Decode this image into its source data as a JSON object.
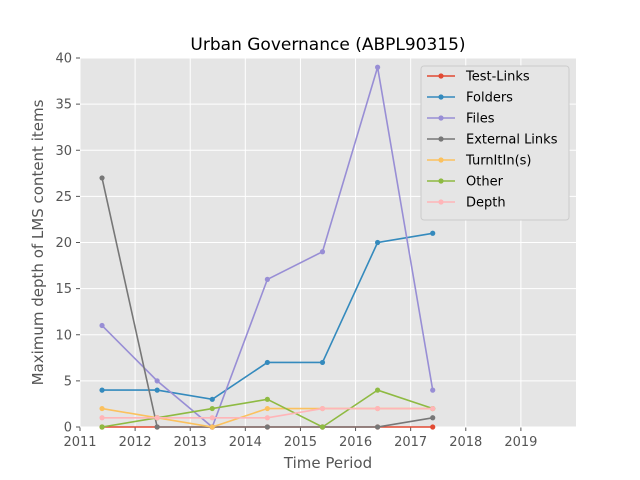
{
  "chart_data": {
    "type": "line",
    "title": "Urban Governance (ABPL90315)",
    "xlabel": "Time Period",
    "ylabel": "Maximum depth of LMS content items",
    "xlim": [
      2011,
      2020
    ],
    "ylim": [
      0,
      40
    ],
    "x_ticks": [
      "2011",
      "2012",
      "2013",
      "2014",
      "2015",
      "2016",
      "2017",
      "2018",
      "2019"
    ],
    "y_ticks": [
      "0",
      "5",
      "10",
      "15",
      "20",
      "25",
      "30",
      "35",
      "40"
    ],
    "x": [
      2011.4,
      2012.4,
      2013.4,
      2014.4,
      2015.4,
      2016.4,
      2017.4
    ],
    "grid": true,
    "legend_position": "top-right",
    "background": "#e5e5e5",
    "series": [
      {
        "name": "Test-Links",
        "color": "#e24a33",
        "values": [
          0,
          0,
          0,
          0,
          0,
          0,
          0
        ]
      },
      {
        "name": "Folders",
        "color": "#348abd",
        "values": [
          4,
          4,
          3,
          7,
          7,
          20,
          21
        ]
      },
      {
        "name": "Files",
        "color": "#988ed5",
        "values": [
          11,
          5,
          0,
          16,
          19,
          39,
          4
        ]
      },
      {
        "name": "External Links",
        "color": "#777777",
        "values": [
          27,
          0,
          0,
          0,
          0,
          0,
          1
        ]
      },
      {
        "name": "TurnItIn(s)",
        "color": "#fbc15e",
        "values": [
          2,
          1,
          0,
          2,
          2,
          2,
          2
        ]
      },
      {
        "name": "Other",
        "color": "#8eba42",
        "values": [
          0,
          1,
          2,
          3,
          0,
          4,
          2
        ]
      },
      {
        "name": "Depth",
        "color": "#ffb5b8",
        "values": [
          1,
          1,
          1,
          1,
          2,
          2,
          2
        ]
      }
    ]
  }
}
